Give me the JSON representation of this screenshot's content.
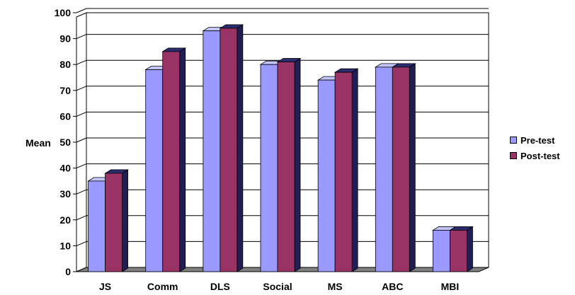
{
  "chart_data": {
    "type": "bar",
    "title": "",
    "xlabel": "",
    "ylabel": "Mean",
    "ylim": [
      0,
      100
    ],
    "yticks": [
      0,
      10,
      20,
      30,
      40,
      50,
      60,
      70,
      80,
      90,
      100
    ],
    "categories": [
      "JS",
      "Comm",
      "DLS",
      "Social",
      "MS",
      "ABC",
      "MBI"
    ],
    "series": [
      {
        "name": "Pre-test",
        "values": [
          35,
          78,
          93,
          80,
          74,
          79,
          16
        ],
        "color": "#9999ff",
        "top_color": "#c4c4ff",
        "side_color": "#5c5cb0"
      },
      {
        "name": "Post-test",
        "values": [
          38,
          85,
          94,
          81,
          77,
          79,
          16
        ],
        "color": "#993366",
        "top_color": "#2b2b70",
        "side_color": "#1f1f55"
      }
    ],
    "grid": true,
    "legend_position": "right",
    "style": "3d-clustered-column"
  }
}
